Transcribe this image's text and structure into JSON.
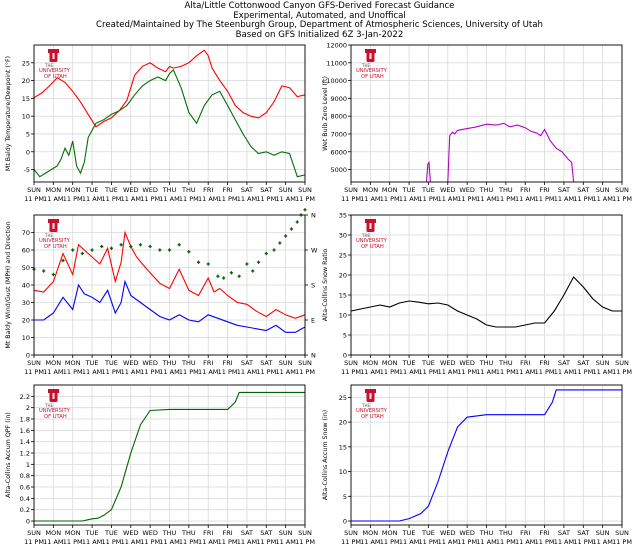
{
  "header": {
    "line1": "Alta/Little Cottonwood Canyon GFS-Derived Forecast Guidance",
    "line2": "Experimental, Automated, and Unoffical",
    "line3": "Created/Maintained by The Steenburgh Group, Department of Atmospheric Sciences, University of Utah",
    "line4": "Based on GFS Initialized 6Z 3-Jan-2022"
  },
  "logo": {
    "text_line1": "THE",
    "text_line2": "UNIVERSITY",
    "text_line3": "OF UTAH",
    "color": "#c8102e"
  },
  "x_axis": {
    "day_labels": [
      "SUN",
      "MON",
      "MON",
      "TUE",
      "TUE",
      "WED",
      "WED",
      "THU",
      "THU",
      "FRI",
      "FRI",
      "SAT",
      "SAT",
      "SUN",
      "SUN"
    ],
    "time_labels": [
      "11 PM",
      "11 AM",
      "11 PM",
      "11 AM",
      "11 PM",
      "11 AM",
      "11 PM",
      "11 AM",
      "11 PM",
      "11 AM",
      "11 PM",
      "11 AM",
      "11 PM",
      "11 AM",
      "11 PM"
    ]
  },
  "chart_data": [
    {
      "id": "temp",
      "type": "line",
      "ylabel": "Mt Baldy Temperature/Dewpoint (°F)",
      "ylim": [
        -8.5,
        30
      ],
      "yticks": [
        -5,
        0,
        5,
        10,
        15,
        20,
        25
      ],
      "grid": true,
      "series": [
        {
          "name": "Temperature",
          "color": "#ff0000",
          "x": [
            0,
            0.4,
            0.8,
            1.2,
            1.6,
            2.0,
            2.4,
            2.8,
            3.2,
            3.6,
            4.0,
            4.4,
            4.8,
            5.2,
            5.6,
            6.0,
            6.4,
            6.8,
            7.0,
            7.2,
            7.6,
            8.0,
            8.4,
            8.8,
            9.0,
            9.2,
            9.6,
            10.0,
            10.4,
            10.8,
            11.2,
            11.6,
            12.0,
            12.4,
            12.8,
            13.2,
            13.6,
            14.0
          ],
          "values": [
            15.2,
            16.5,
            18.5,
            20.8,
            19.5,
            17,
            14,
            10.5,
            7,
            8.5,
            9.5,
            11.5,
            14.5,
            21.5,
            24,
            25,
            23.5,
            22.5,
            24,
            23.5,
            24,
            25,
            27,
            28.5,
            27,
            23.5,
            20,
            17,
            13,
            11,
            10,
            9.5,
            11,
            14,
            18.5,
            18,
            15.5,
            16
          ]
        },
        {
          "name": "Dewpoint",
          "color": "#007000",
          "x": [
            0,
            0.3,
            0.6,
            0.9,
            1.2,
            1.4,
            1.6,
            1.8,
            2.0,
            2.2,
            2.4,
            2.6,
            2.8,
            3.2,
            3.6,
            4.0,
            4.4,
            4.8,
            5.2,
            5.6,
            6.0,
            6.4,
            6.8,
            7.0,
            7.2,
            7.6,
            8.0,
            8.4,
            8.8,
            9.2,
            9.6,
            10.0,
            10.4,
            10.8,
            11.2,
            11.6,
            12.0,
            12.4,
            12.8,
            13.2,
            13.6,
            14.0
          ],
          "values": [
            -5,
            -7,
            -6,
            -5,
            -4,
            -2,
            1,
            -1,
            3,
            -4,
            -6,
            -3,
            4,
            8,
            9,
            10.5,
            11.5,
            13,
            16,
            18.5,
            20,
            21,
            20,
            22,
            23,
            18,
            11,
            8,
            13,
            16,
            17,
            13,
            9,
            5,
            1.5,
            -0.5,
            0,
            -1,
            0,
            -0.5,
            -7,
            -6.5
          ]
        }
      ]
    },
    {
      "id": "wbz",
      "type": "line",
      "ylabel": "Wet Bulb Zero Level (ft)",
      "ylim": [
        4300,
        12000
      ],
      "yticks": [
        5000,
        6000,
        7000,
        8000,
        9000,
        10000,
        11000,
        12000
      ],
      "grid": true,
      "series": [
        {
          "name": "Wet Bulb Zero Level",
          "color": "#b000c8",
          "x": [
            5.0,
            5.1,
            5.25,
            5.35,
            5.5,
            6.0,
            6.5,
            7.0,
            7.5,
            7.9,
            8.2,
            8.6,
            9.0,
            9.3,
            9.6,
            9.8,
            10.0,
            10.3,
            10.6,
            10.9,
            11.2,
            11.4,
            11.5
          ],
          "values": [
            4300,
            6900,
            7100,
            7000,
            7200,
            7300,
            7400,
            7550,
            7500,
            7600,
            7400,
            7500,
            7350,
            7150,
            7050,
            6900,
            7250,
            6600,
            6200,
            6000,
            5600,
            5400,
            4300
          ],
          "extra_segments": [
            {
              "x": [
                3.9,
                3.97,
                4.03,
                4.1
              ],
              "values": [
                4300,
                5300,
                5400,
                4300
              ]
            }
          ]
        }
      ]
    },
    {
      "id": "wind",
      "type": "line",
      "ylabel": "Mt Baldy Wind/Gust (MPH) and Direction",
      "ylim": [
        0,
        80
      ],
      "yticks": [
        0,
        10,
        20,
        30,
        40,
        50,
        60,
        70
      ],
      "right_axis_labels": [
        "N",
        "E",
        "S",
        "W",
        "N"
      ],
      "grid": true,
      "series": [
        {
          "name": "Gust",
          "color": "#ff0000",
          "x": [
            0,
            0.5,
            1.0,
            1.5,
            2.0,
            2.3,
            2.6,
            3.0,
            3.4,
            3.8,
            4.2,
            4.5,
            4.7,
            5.0,
            5.3,
            5.6,
            6.0,
            6.5,
            7.0,
            7.5,
            8.0,
            8.5,
            9.0,
            9.3,
            9.6,
            10.0,
            10.5,
            11.0,
            11.5,
            12.0,
            12.5,
            13.0,
            13.5,
            14.0
          ],
          "values": [
            37,
            36,
            42,
            58,
            46,
            63,
            60,
            56,
            52,
            61,
            42,
            53,
            70,
            62,
            56,
            52,
            47,
            41,
            38,
            49,
            37,
            34,
            44,
            36,
            38,
            34,
            30,
            29,
            25,
            22,
            26,
            23,
            21,
            23
          ]
        },
        {
          "name": "Wind",
          "color": "#0000ff",
          "x": [
            0,
            0.5,
            1.0,
            1.5,
            2.0,
            2.3,
            2.6,
            3.0,
            3.4,
            3.8,
            4.2,
            4.5,
            4.7,
            5.0,
            5.5,
            6.0,
            6.5,
            7.0,
            7.5,
            8.0,
            8.5,
            9.0,
            9.5,
            10.0,
            10.5,
            11.0,
            11.5,
            12.0,
            12.5,
            13.0,
            13.5,
            14.0
          ],
          "values": [
            20,
            20,
            24,
            33,
            26,
            40,
            35,
            33,
            30,
            37,
            24,
            30,
            42,
            34,
            30,
            26,
            22,
            20,
            23,
            20,
            19,
            23,
            21,
            19,
            17,
            16,
            15,
            14,
            17,
            13,
            13,
            16
          ]
        },
        {
          "name": "Direction",
          "color": "#006000",
          "style": "markers",
          "x": [
            0,
            0.5,
            1.0,
            1.5,
            2.0,
            2.5,
            3.0,
            3.5,
            4.0,
            4.5,
            5.0,
            5.5,
            6.0,
            6.5,
            7.0,
            7.5,
            8.0,
            8.5,
            9.0,
            9.5,
            9.8,
            10.2,
            10.6,
            11.0,
            11.3,
            11.6,
            12.0,
            12.4,
            12.7,
            13.0,
            13.3,
            13.6,
            13.8,
            14.0
          ],
          "values": [
            49,
            48,
            46,
            54,
            60,
            58,
            60,
            62,
            61,
            63,
            62,
            63,
            62,
            60,
            60,
            63,
            59,
            53,
            52,
            45,
            44,
            47,
            45,
            52,
            48,
            53,
            58,
            60,
            64,
            68,
            72,
            76,
            80,
            83
          ]
        }
      ]
    },
    {
      "id": "slr",
      "type": "line",
      "ylabel": "Alta-Collins Snow Ratio",
      "ylim": [
        0,
        35
      ],
      "yticks": [
        0,
        5,
        10,
        15,
        20,
        25,
        30,
        35
      ],
      "grid": true,
      "series": [
        {
          "name": "Snow Ratio",
          "color": "#000000",
          "x": [
            0,
            0.5,
            1.0,
            1.5,
            2.0,
            2.5,
            3.0,
            3.5,
            4.0,
            4.5,
            5.0,
            5.5,
            6.0,
            6.5,
            7.0,
            7.5,
            8.0,
            8.5,
            9.0,
            9.5,
            10.0,
            10.5,
            11.0,
            11.5,
            12.0,
            12.5,
            13.0,
            13.5,
            14.0
          ],
          "values": [
            11,
            11.5,
            12,
            12.5,
            12,
            13,
            13.5,
            13.2,
            12.8,
            13,
            12.5,
            11,
            10,
            9,
            7.5,
            7,
            7,
            7,
            7.5,
            8,
            8,
            11,
            15,
            19.5,
            17,
            14,
            12,
            11,
            11
          ]
        }
      ]
    },
    {
      "id": "qpf",
      "type": "line",
      "ylabel": "Alta-Collins Accum QPF (in)",
      "ylim": [
        -0.07,
        2.4
      ],
      "yticks": [
        0.0,
        0.2,
        0.4,
        0.6,
        0.8,
        1.0,
        1.2,
        1.4,
        1.6,
        1.8,
        2.0,
        2.2
      ],
      "grid": true,
      "series": [
        {
          "name": "Accum QPF",
          "color": "#006400",
          "x": [
            0,
            1,
            2,
            2.5,
            3.0,
            3.3,
            3.6,
            4.0,
            4.5,
            5.0,
            5.5,
            6.0,
            7.0,
            8.0,
            9.0,
            9.5,
            10.0,
            10.4,
            10.6,
            11.0,
            12.0,
            13.0,
            14.0
          ],
          "values": [
            0,
            0,
            0,
            0,
            0.04,
            0.05,
            0.1,
            0.2,
            0.6,
            1.2,
            1.7,
            1.95,
            1.97,
            1.97,
            1.97,
            1.97,
            1.97,
            2.1,
            2.27,
            2.27,
            2.27,
            2.27,
            2.27
          ]
        }
      ]
    },
    {
      "id": "snow",
      "type": "line",
      "ylabel": "Alta-Collins Accum Snow (in)",
      "ylim": [
        -0.8,
        27.5
      ],
      "yticks": [
        0,
        5,
        10,
        15,
        20,
        25
      ],
      "grid": true,
      "series": [
        {
          "name": "Accum Snow",
          "color": "#0000ff",
          "x": [
            0,
            1,
            2,
            2.5,
            3.0,
            3.3,
            3.6,
            4.0,
            4.5,
            5.0,
            5.5,
            6.0,
            7.0,
            8.0,
            9.0,
            9.5,
            10.0,
            10.4,
            10.6,
            11.0,
            12.0,
            13.0,
            14.0
          ],
          "values": [
            0,
            0,
            0,
            0,
            0.5,
            1,
            1.5,
            3,
            8,
            14,
            19,
            21,
            21.5,
            21.5,
            21.5,
            21.5,
            21.5,
            24,
            26.5,
            26.5,
            26.5,
            26.5,
            26.5
          ]
        }
      ]
    }
  ]
}
